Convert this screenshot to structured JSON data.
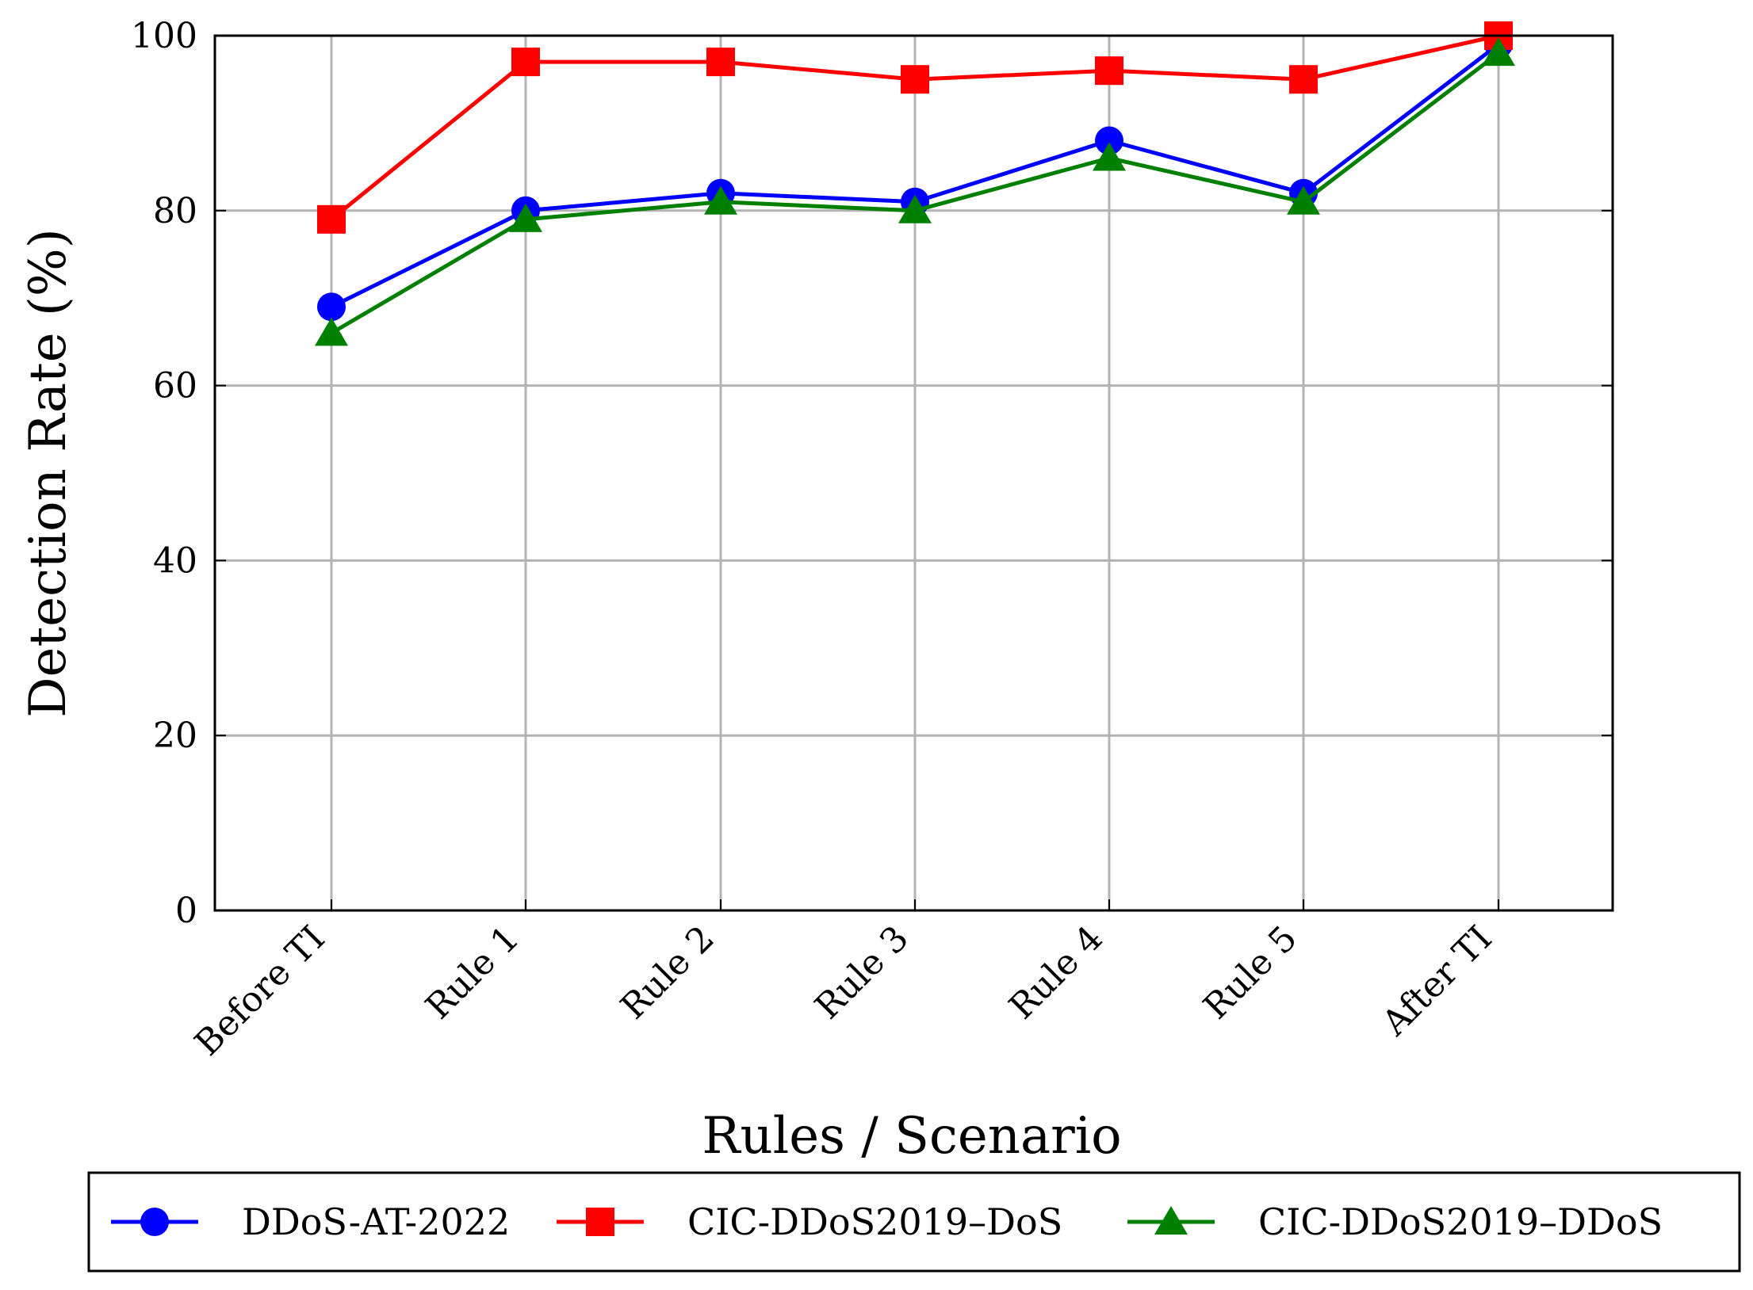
{
  "chart_data": {
    "type": "line",
    "categories": [
      "Before TI",
      "Rule 1",
      "Rule 2",
      "Rule 3",
      "Rule 4",
      "Rule 5",
      "After TI"
    ],
    "series": [
      {
        "name": "DDoS-AT-2022",
        "values": [
          69,
          80,
          82,
          81,
          88,
          82,
          99
        ],
        "color": "#0000ff",
        "marker": "circle"
      },
      {
        "name": "CIC-DDoS2019–DoS",
        "values": [
          79,
          97,
          97,
          95,
          96,
          95,
          100
        ],
        "color": "#ff0000",
        "marker": "square"
      },
      {
        "name": "CIC-DDoS2019–DDoS",
        "values": [
          66,
          79,
          81,
          80,
          86,
          81,
          98
        ],
        "color": "#008000",
        "marker": "triangle"
      }
    ],
    "xlabel": "Rules / Scenario",
    "ylabel": "Detection Rate (%)",
    "ylim": [
      0,
      100
    ],
    "yticks": [
      "0",
      "20",
      "40",
      "60",
      "80",
      "100"
    ],
    "grid": true,
    "legend_position": "bottom"
  }
}
